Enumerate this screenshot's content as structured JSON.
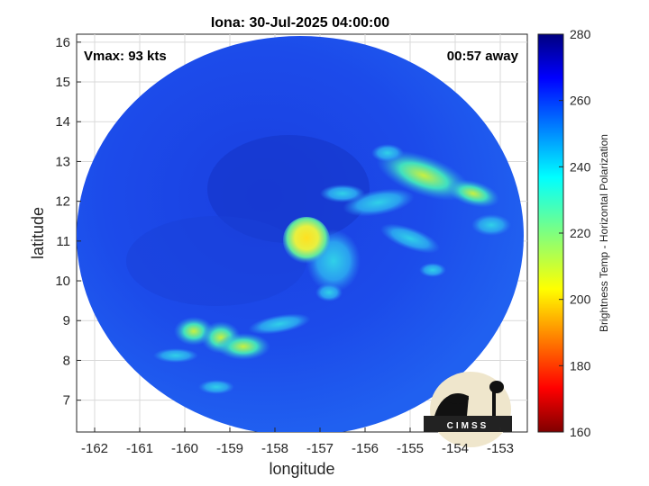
{
  "chart_data": {
    "type": "heatmap",
    "title": "Iona: 30-Jul-2025 04:00:00",
    "xlabel": "longitude",
    "ylabel": "latitude",
    "x_ticks": [
      -162,
      -161,
      -160,
      -159,
      -158,
      -157,
      -156,
      -155,
      -154,
      -153
    ],
    "y_ticks": [
      7,
      8,
      9,
      10,
      11,
      12,
      13,
      14,
      15,
      16
    ],
    "xlim": [
      -162.4,
      -152.4
    ],
    "ylim": [
      6.2,
      16.2
    ],
    "grid": true,
    "annotations": {
      "left": "Vmax: 93 kts",
      "right": "00:57 away"
    },
    "colorbar": {
      "label": "Brightness Temp - Horizontal Polarization",
      "range": [
        160,
        280
      ],
      "ticks": [
        160,
        180,
        200,
        220,
        240,
        260,
        280
      ],
      "colormap": "jet"
    },
    "storm_center": {
      "lon": -157.6,
      "lat": 11.0
    },
    "logo": "CIMSS",
    "colors": {
      "background_field": "#1747e6",
      "eye_warm": "#f0e020",
      "rainband": "#40d8c0"
    }
  }
}
